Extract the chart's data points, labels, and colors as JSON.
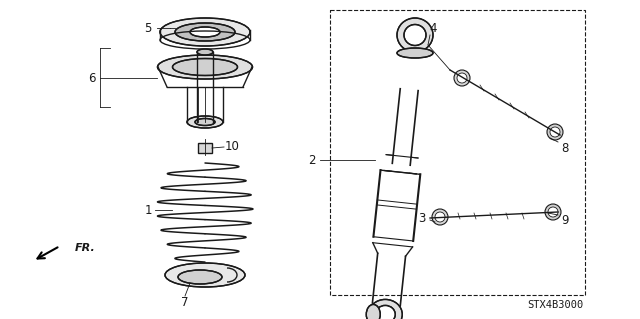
{
  "bg_color": "#ffffff",
  "line_color": "#1a1a1a",
  "label_color": "#1a1a1a",
  "diagram_code": "STX4B3000",
  "figsize": [
    6.4,
    3.19
  ],
  "dpi": 100
}
